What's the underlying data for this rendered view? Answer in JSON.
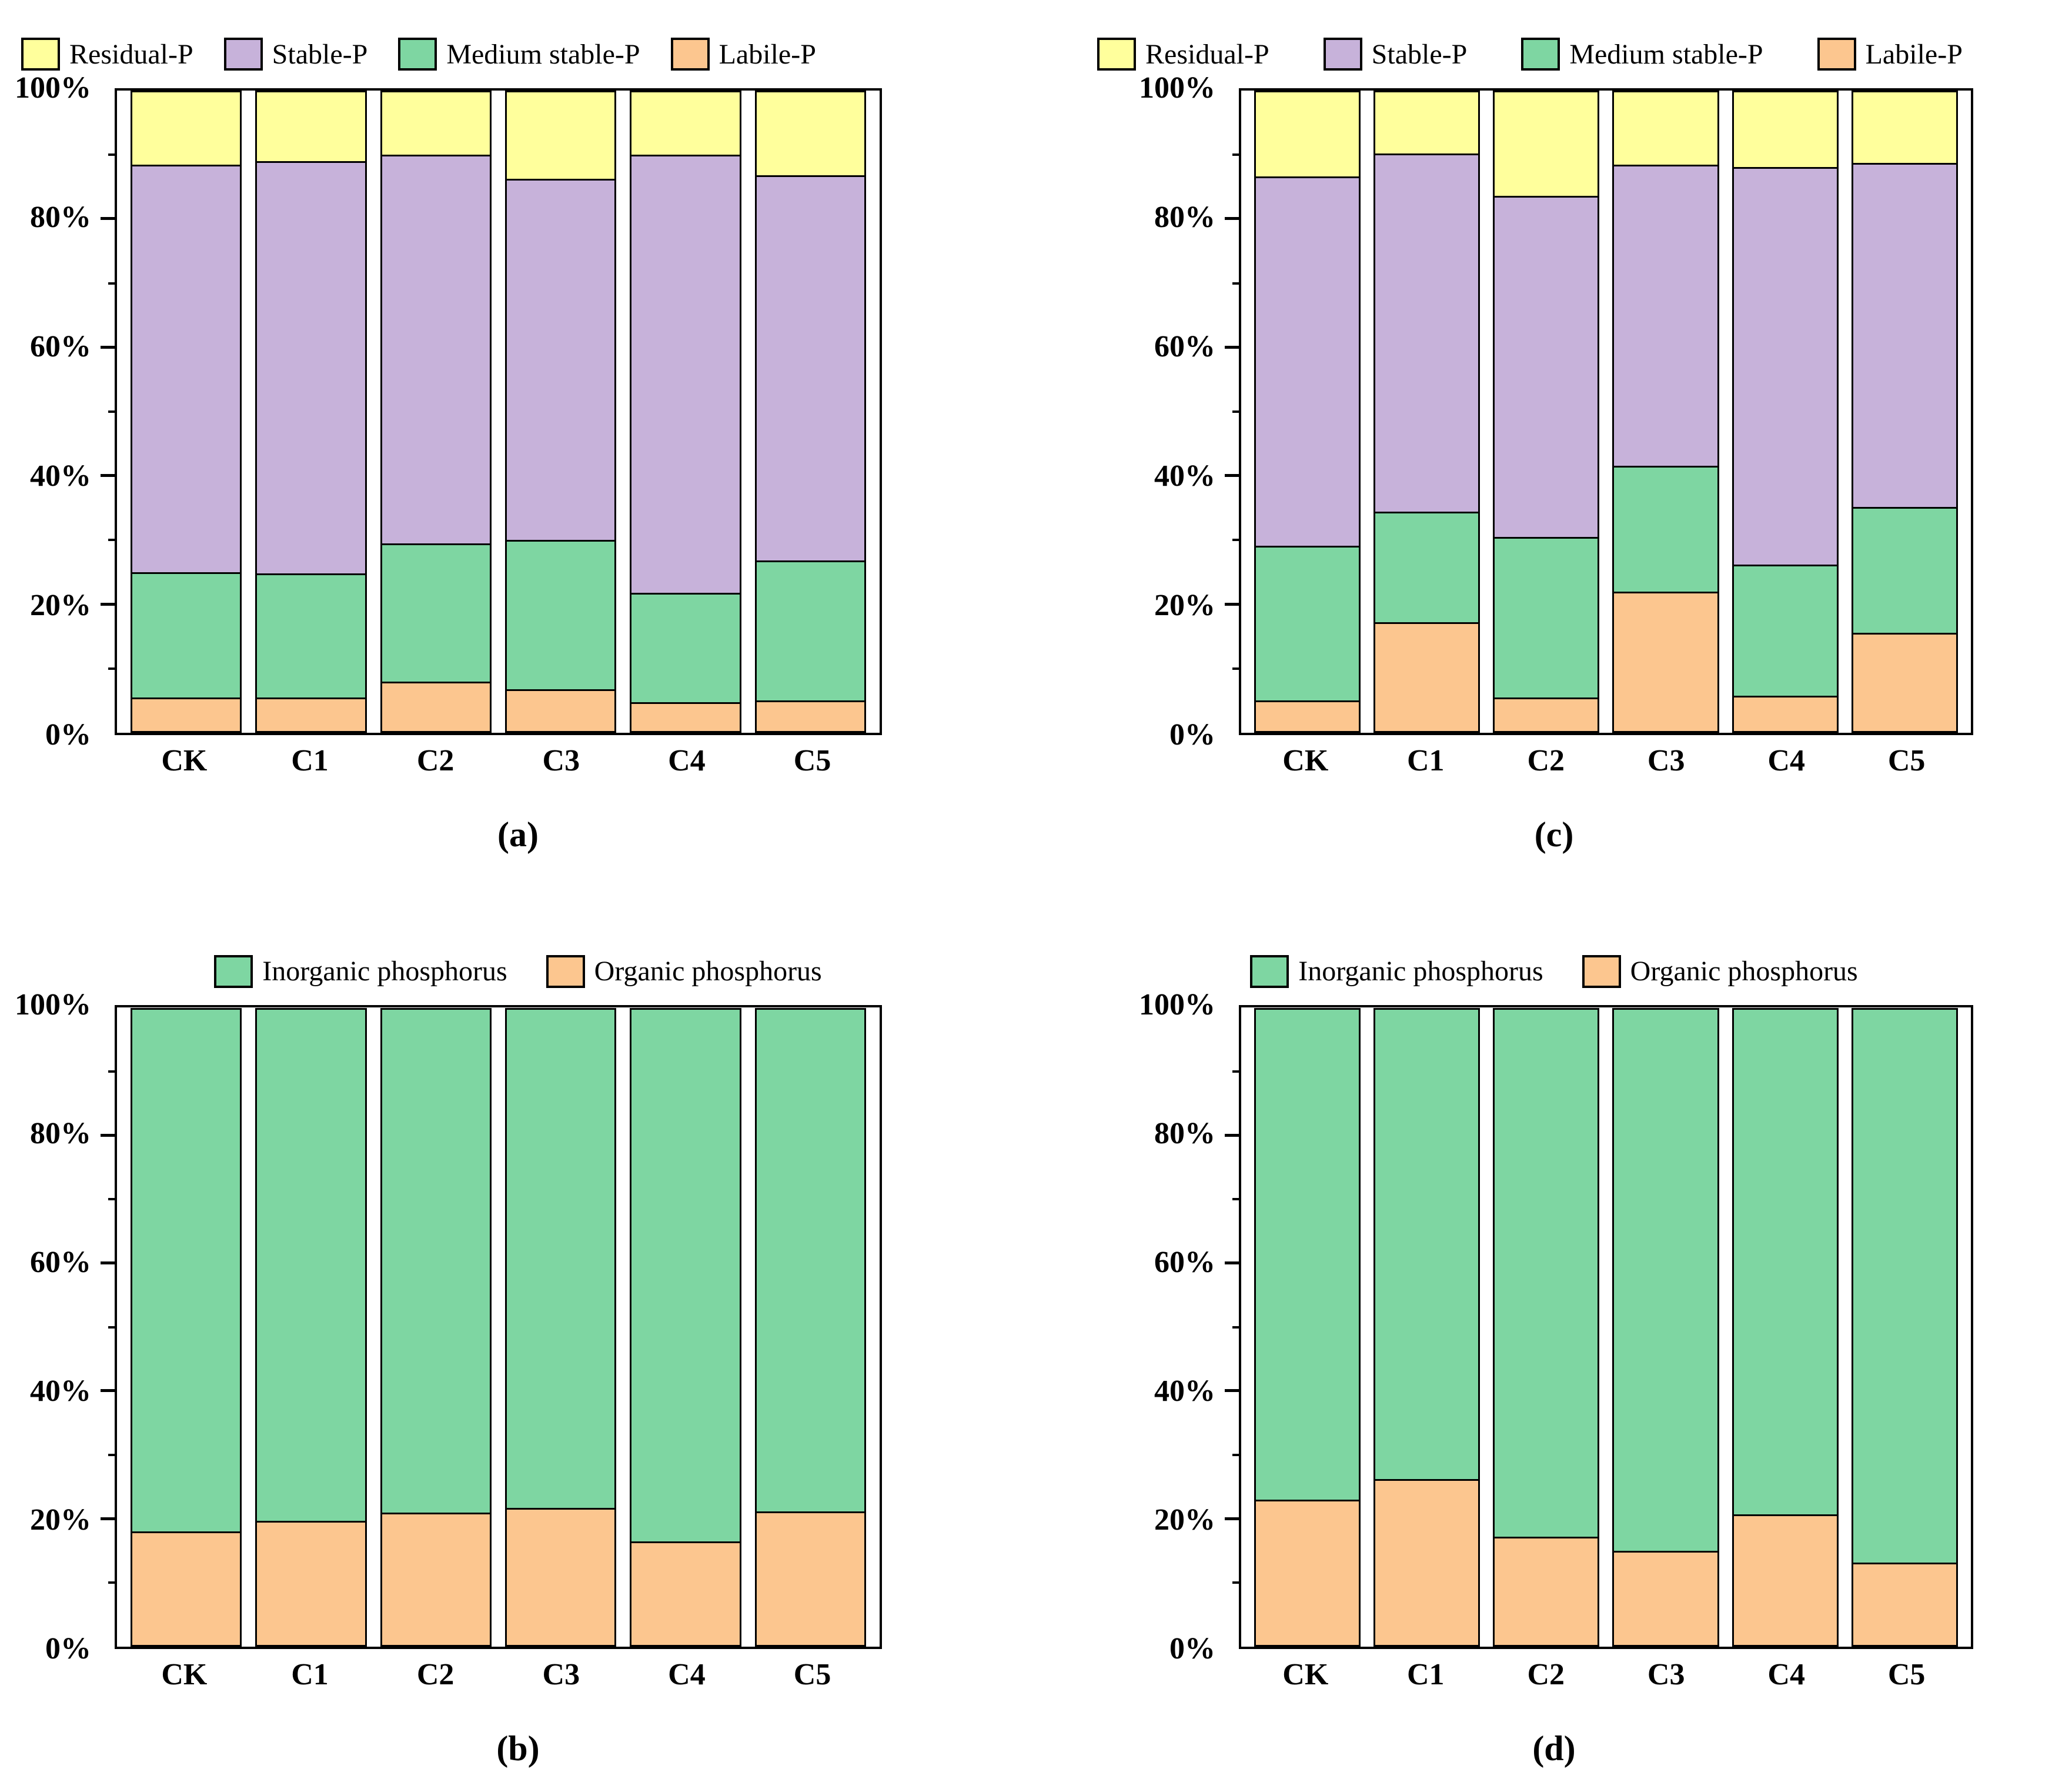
{
  "figure": {
    "background": "#FFFFFF",
    "text_color": "#000000",
    "outline_color": "#000000"
  },
  "palette": {
    "residual_p": "#FFFF9C",
    "stable_p": "#C7B2DA",
    "medium_stable_p": "#7ED6A2",
    "labile_p": "#FCC68F",
    "inorganic_p": "#7ED6A2",
    "organic_p": "#FCC68F"
  },
  "chart_data": [
    {
      "id": "a",
      "panel_label": "(a)",
      "type": "bar",
      "stacked": true,
      "units": "percent",
      "grid": false,
      "legend_align": "left",
      "legend_position": "top",
      "legend": [
        {
          "label": "Residual-P",
          "color": "#FFFF9C",
          "icon": "legend-swatch-residual-p"
        },
        {
          "label": "Stable-P",
          "color": "#C7B2DA",
          "icon": "legend-swatch-stable-p"
        },
        {
          "label": "Medium stable-P",
          "color": "#7ED6A2",
          "icon": "legend-swatch-medium-stable-p"
        },
        {
          "label": "Labile-P",
          "color": "#FCC68F",
          "icon": "legend-swatch-labile-p"
        }
      ],
      "categories": [
        "CK",
        "C1",
        "C2",
        "C3",
        "C4",
        "C5"
      ],
      "y_ticks": [
        "0%",
        "20%",
        "40%",
        "60%",
        "80%",
        "100%"
      ],
      "ylim": [
        0,
        100
      ],
      "minor_tick_step": 10,
      "series": [
        {
          "name": "Labile-P",
          "color": "#FCC68F",
          "values": [
            5.5,
            5.5,
            8.0,
            6.8,
            4.8,
            5.0
          ]
        },
        {
          "name": "Medium stable-P",
          "color": "#7ED6A2",
          "values": [
            19.5,
            19.3,
            21.5,
            23.2,
            17.0,
            21.8
          ]
        },
        {
          "name": "Stable-P",
          "color": "#C7B2DA",
          "values": [
            63.5,
            64.2,
            60.5,
            56.3,
            68.2,
            60.0
          ]
        },
        {
          "name": "Residual-P",
          "color": "#FFFF9C",
          "values": [
            11.5,
            11.0,
            10.0,
            13.7,
            10.0,
            13.2
          ]
        }
      ]
    },
    {
      "id": "c",
      "panel_label": "(c)",
      "type": "bar",
      "stacked": true,
      "units": "percent",
      "grid": false,
      "legend_align": "left",
      "legend_position": "top",
      "legend": [
        {
          "label": "Residual-P",
          "color": "#FFFF9C",
          "icon": "legend-swatch-residual-p"
        },
        {
          "label": "Stable-P",
          "color": "#C7B2DA",
          "icon": "legend-swatch-stable-p"
        },
        {
          "label": "Medium stable-P",
          "color": "#7ED6A2",
          "icon": "legend-swatch-medium-stable-p"
        },
        {
          "label": "Labile-P",
          "color": "#FCC68F",
          "icon": "legend-swatch-labile-p"
        }
      ],
      "categories": [
        "CK",
        "C1",
        "C2",
        "C3",
        "C4",
        "C5"
      ],
      "y_ticks": [
        "0%",
        "20%",
        "40%",
        "60%",
        "80%",
        "100%"
      ],
      "ylim": [
        0,
        100
      ],
      "minor_tick_step": 10,
      "series": [
        {
          "name": "Labile-P",
          "color": "#FCC68F",
          "values": [
            5.0,
            17.2,
            5.5,
            22.0,
            5.8,
            15.6
          ]
        },
        {
          "name": "Medium stable-P",
          "color": "#7ED6A2",
          "values": [
            24.1,
            17.2,
            25.0,
            19.6,
            20.4,
            19.6
          ]
        },
        {
          "name": "Stable-P",
          "color": "#C7B2DA",
          "values": [
            57.5,
            55.8,
            53.1,
            46.9,
            61.9,
            53.5
          ]
        },
        {
          "name": "Residual-P",
          "color": "#FFFF9C",
          "values": [
            13.4,
            9.8,
            16.4,
            11.5,
            11.9,
            11.3
          ]
        }
      ]
    },
    {
      "id": "b",
      "panel_label": "(b)",
      "type": "bar",
      "stacked": true,
      "units": "percent",
      "grid": false,
      "legend_align": "center",
      "legend_position": "top",
      "legend": [
        {
          "label": "Inorganic phosphorus",
          "color": "#7ED6A2",
          "icon": "legend-swatch-inorganic-phosphorus"
        },
        {
          "label": "Organic phosphorus",
          "color": "#FCC68F",
          "icon": "legend-swatch-organic-phosphorus"
        }
      ],
      "categories": [
        "CK",
        "C1",
        "C2",
        "C3",
        "C4",
        "C5"
      ],
      "y_ticks": [
        "0%",
        "20%",
        "40%",
        "60%",
        "80%",
        "100%"
      ],
      "ylim": [
        0,
        100
      ],
      "minor_tick_step": 10,
      "series": [
        {
          "name": "Organic phosphorus",
          "color": "#FCC68F",
          "values": [
            18.0,
            19.7,
            21.0,
            21.7,
            16.5,
            21.2
          ]
        },
        {
          "name": "Inorganic phosphorus",
          "color": "#7ED6A2",
          "values": [
            82.0,
            80.3,
            79.0,
            78.3,
            83.5,
            78.8
          ]
        }
      ]
    },
    {
      "id": "d",
      "panel_label": "(d)",
      "type": "bar",
      "stacked": true,
      "units": "percent",
      "grid": false,
      "legend_align": "center",
      "legend_position": "top",
      "legend": [
        {
          "label": "Inorganic phosphorus",
          "color": "#7ED6A2",
          "icon": "legend-swatch-inorganic-phosphorus"
        },
        {
          "label": "Organic phosphorus",
          "color": "#FCC68F",
          "icon": "legend-swatch-organic-phosphorus"
        }
      ],
      "categories": [
        "CK",
        "C1",
        "C2",
        "C3",
        "C4",
        "C5"
      ],
      "y_ticks": [
        "0%",
        "20%",
        "40%",
        "60%",
        "80%",
        "100%"
      ],
      "ylim": [
        0,
        100
      ],
      "minor_tick_step": 10,
      "series": [
        {
          "name": "Organic phosphorus",
          "color": "#FCC68F",
          "values": [
            23.0,
            26.2,
            17.2,
            15.0,
            20.7,
            13.2
          ]
        },
        {
          "name": "Inorganic phosphorus",
          "color": "#7ED6A2",
          "values": [
            77.0,
            73.8,
            82.8,
            85.0,
            79.3,
            86.8
          ]
        }
      ]
    }
  ]
}
